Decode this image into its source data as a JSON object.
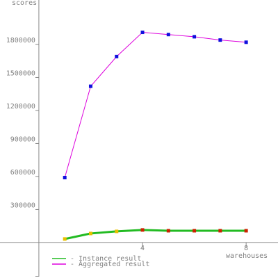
{
  "chart_data": {
    "type": "line",
    "y_label": "scores",
    "x_label": "warehouses",
    "x": [
      1,
      2,
      3,
      4,
      5,
      6,
      7,
      8
    ],
    "xlim": [
      -1.5,
      9.23
    ],
    "xticks": [
      4,
      8
    ],
    "ylim": [
      -310000,
      2204000
    ],
    "yticks": [
      300000,
      600000,
      900000,
      1200000,
      1500000,
      1800000
    ],
    "series": [
      {
        "name": "- Instance result",
        "color": "#22bb22",
        "line_width": 3,
        "marker_colors": [
          "#e8c000",
          "#e8c000",
          "#e8c000",
          "#cc2200",
          "#cc2200",
          "#cc2200",
          "#cc2200",
          "#cc2200"
        ],
        "values": [
          32000,
          82000,
          101000,
          114000,
          107000,
          107000,
          107000,
          107000
        ]
      },
      {
        "name": "- Aggregated result",
        "color": "#dd00dd",
        "line_width": 1,
        "marker_colors": [
          "#1010dd",
          "#1010dd",
          "#1010dd",
          "#1010dd",
          "#1010dd",
          "#1010dd",
          "#1010dd",
          "#1010dd"
        ],
        "values": [
          590000,
          1420000,
          1690000,
          1910000,
          1890000,
          1870000,
          1840000,
          1820000
        ]
      }
    ]
  }
}
